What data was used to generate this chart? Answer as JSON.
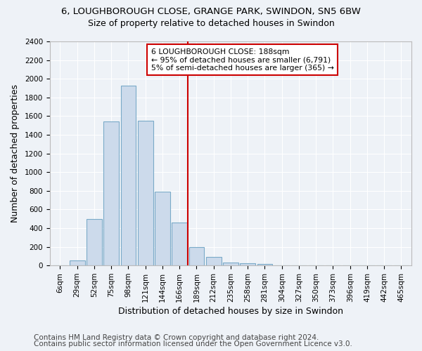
{
  "title_line1": "6, LOUGHBOROUGH CLOSE, GRANGE PARK, SWINDON, SN5 6BW",
  "title_line2": "Size of property relative to detached houses in Swindon",
  "xlabel": "Distribution of detached houses by size in Swindon",
  "ylabel": "Number of detached properties",
  "categories": [
    "6sqm",
    "29sqm",
    "52sqm",
    "75sqm",
    "98sqm",
    "121sqm",
    "144sqm",
    "166sqm",
    "189sqm",
    "212sqm",
    "235sqm",
    "258sqm",
    "281sqm",
    "304sqm",
    "327sqm",
    "350sqm",
    "373sqm",
    "396sqm",
    "419sqm",
    "442sqm",
    "465sqm"
  ],
  "values": [
    0,
    55,
    500,
    1540,
    1930,
    1550,
    790,
    460,
    195,
    90,
    35,
    25,
    20,
    0,
    0,
    0,
    0,
    0,
    0,
    0,
    0
  ],
  "bar_color": "#ccdaeb",
  "bar_edge_color": "#7aaac8",
  "vline_index": 8,
  "annotation_lines": [
    "6 LOUGHBOROUGH CLOSE: 188sqm",
    "← 95% of detached houses are smaller (6,791)",
    "5% of semi-detached houses are larger (365) →"
  ],
  "vline_color": "#cc0000",
  "annotation_box_edge": "#cc0000",
  "ylim": [
    0,
    2400
  ],
  "yticks": [
    0,
    200,
    400,
    600,
    800,
    1000,
    1200,
    1400,
    1600,
    1800,
    2000,
    2200,
    2400
  ],
  "footnote1": "Contains HM Land Registry data © Crown copyright and database right 2024.",
  "footnote2": "Contains public sector information licensed under the Open Government Licence v3.0.",
  "background_color": "#eef2f7",
  "plot_bg_color": "#eef2f7",
  "grid_color": "#ffffff",
  "title_fontsize": 9.5,
  "subtitle_fontsize": 9,
  "axis_label_fontsize": 9,
  "tick_fontsize": 7.5,
  "footnote_fontsize": 7.5
}
